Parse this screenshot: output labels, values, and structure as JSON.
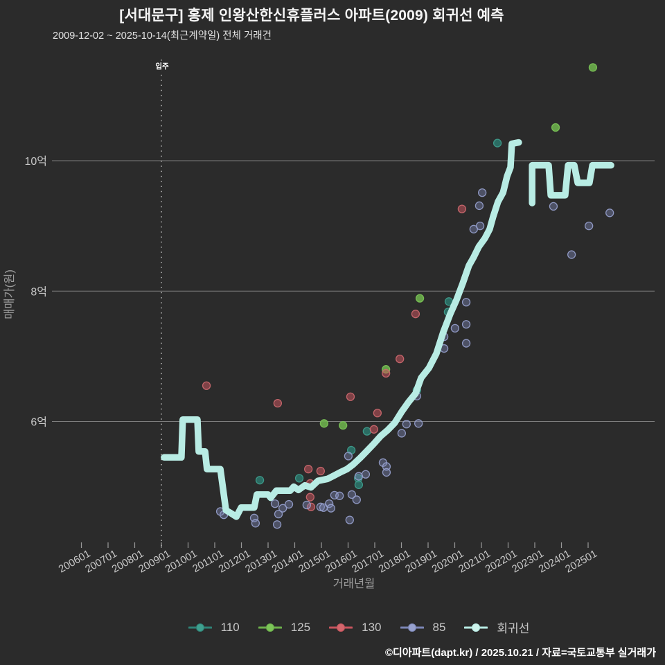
{
  "header": {
    "title": "[서대문구] 홍제 인왕산한신휴플러스 아파트(2009) 회귀선 예측",
    "subtitle": "2009-12-02 ~ 2025-10-14(최근계약일) 전체 거래건"
  },
  "annotation": {
    "move_in_label": "입주",
    "move_in_x_label": "200901"
  },
  "axes": {
    "y_title": "매매가(원)",
    "x_title": "거래년월",
    "y_ticks": [
      {
        "label": "10억",
        "value": 10
      },
      {
        "label": "8억",
        "value": 8
      },
      {
        "label": "6억",
        "value": 6
      }
    ],
    "x_tick_labels": [
      "200601",
      "200701",
      "200801",
      "200901",
      "201001",
      "201101",
      "201201",
      "201301",
      "201401",
      "201501",
      "201601",
      "201701",
      "201801",
      "201901",
      "202001",
      "202101",
      "202201",
      "202301",
      "202401",
      "202501"
    ]
  },
  "legend": {
    "items": [
      {
        "label": "110",
        "color": "#2f8276",
        "dot": "#3fa08f"
      },
      {
        "label": "125",
        "color": "#6cae4b",
        "dot": "#7cc558"
      },
      {
        "label": "130",
        "color": "#c5545d",
        "dot": "#d4666c"
      },
      {
        "label": "85",
        "color": "#7b86b5",
        "dot": "#98a2cf"
      },
      {
        "label": "회귀선",
        "color": "#b8ece4",
        "dot": "#cdf3ec"
      }
    ]
  },
  "footer": {
    "credit": "©디아파트(dapt.kr) / 2025.10.21 / 자료=국토교통부 실거래가"
  },
  "colors": {
    "background": "#2b2b2b",
    "gridline": "#8d8d8d",
    "tick_text": "#c8c8c8",
    "axis_title_text": "#9c9c9c",
    "dotted_vline": "#b4b4b4",
    "regression_line": "#b8ece4"
  },
  "chart_data": {
    "type": "scatter",
    "title": "[서대문구] 홍제 인왕산한신휴플러스 아파트(2009) 회귀선 예측",
    "subtitle": "2009-12-02 ~ 2025-10-14(최근계약일) 전체 거래건",
    "xlabel": "거래년월",
    "ylabel": "매매가(원)",
    "y_unit": "억",
    "xlim": [
      2004.9,
      2027.5
    ],
    "ylim": [
      4.0,
      11.6
    ],
    "grid": "horizontal-only",
    "legend_position": "bottom-center",
    "vline": {
      "x": 2009.0,
      "label": "입주",
      "style": "dotted"
    },
    "series": [
      {
        "name": "110",
        "kind": "scatter",
        "fill": "#2c7d72",
        "stroke": "#3fa08f",
        "fill_opacity": 0.8,
        "points": [
          [
            2012.69,
            5.1
          ],
          [
            2014.17,
            5.13
          ],
          [
            2016.12,
            5.56
          ],
          [
            2016.38,
            5.13
          ],
          [
            2016.4,
            5.03
          ],
          [
            2016.71,
            5.85
          ],
          [
            2018.58,
            6.48
          ],
          [
            2019.75,
            7.68
          ],
          [
            2019.78,
            7.84
          ],
          [
            2021.6,
            10.27
          ]
        ]
      },
      {
        "name": "125",
        "kind": "scatter",
        "fill": "#6cae4b",
        "stroke": "#7cc558",
        "fill_opacity": 0.9,
        "points": [
          [
            2015.1,
            5.97
          ],
          [
            2015.81,
            5.94
          ],
          [
            2017.42,
            6.8
          ],
          [
            2018.69,
            7.89
          ],
          [
            2023.78,
            10.51
          ],
          [
            2025.18,
            11.43
          ]
        ]
      },
      {
        "name": "130",
        "kind": "scatter",
        "fill": "#c5545d",
        "stroke": "#cf6a70",
        "fill_opacity": 0.55,
        "points": [
          [
            2010.69,
            6.55
          ],
          [
            2013.36,
            6.28
          ],
          [
            2014.51,
            5.27
          ],
          [
            2014.58,
            5.05
          ],
          [
            2014.58,
            4.84
          ],
          [
            2014.61,
            4.69
          ],
          [
            2014.97,
            5.24
          ],
          [
            2016.09,
            6.38
          ],
          [
            2016.97,
            5.88
          ],
          [
            2017.1,
            6.13
          ],
          [
            2017.42,
            6.74
          ],
          [
            2017.94,
            6.96
          ],
          [
            2018.53,
            7.65
          ],
          [
            2020.27,
            9.26
          ]
        ]
      },
      {
        "name": "85",
        "kind": "scatter",
        "fill": "#7b86b5",
        "stroke": "#98a2cf",
        "fill_opacity": 0.42,
        "points": [
          [
            2011.21,
            4.62
          ],
          [
            2011.34,
            4.57
          ],
          [
            2012.48,
            4.52
          ],
          [
            2012.53,
            4.44
          ],
          [
            2013.26,
            4.74
          ],
          [
            2013.34,
            4.42
          ],
          [
            2013.39,
            4.58
          ],
          [
            2013.55,
            4.67
          ],
          [
            2013.78,
            4.73
          ],
          [
            2014.45,
            4.72
          ],
          [
            2014.97,
            4.69
          ],
          [
            2015.08,
            4.68
          ],
          [
            2015.29,
            4.74
          ],
          [
            2015.36,
            4.67
          ],
          [
            2015.49,
            4.87
          ],
          [
            2015.68,
            4.86
          ],
          [
            2016.01,
            5.47
          ],
          [
            2016.06,
            4.49
          ],
          [
            2016.14,
            4.88
          ],
          [
            2016.32,
            4.8
          ],
          [
            2016.4,
            5.16
          ],
          [
            2016.66,
            5.19
          ],
          [
            2017.31,
            5.37
          ],
          [
            2017.44,
            5.31
          ],
          [
            2017.44,
            5.22
          ],
          [
            2018.01,
            5.82
          ],
          [
            2018.19,
            5.96
          ],
          [
            2018.58,
            6.39
          ],
          [
            2018.64,
            5.97
          ],
          [
            2019.6,
            7.3
          ],
          [
            2019.6,
            7.12
          ],
          [
            2020.01,
            7.43
          ],
          [
            2020.43,
            7.49
          ],
          [
            2020.43,
            7.2
          ],
          [
            2020.43,
            7.83
          ],
          [
            2020.71,
            8.95
          ],
          [
            2020.92,
            9.31
          ],
          [
            2020.95,
            9.0
          ],
          [
            2021.03,
            9.51
          ],
          [
            2023.7,
            9.3
          ],
          [
            2024.38,
            8.56
          ],
          [
            2025.03,
            9.0
          ],
          [
            2025.81,
            9.2
          ]
        ]
      },
      {
        "name": "회귀선",
        "kind": "line",
        "stroke": "#b8ece4",
        "width": 9.5,
        "segments": [
          [
            [
              2009.1,
              5.45
            ],
            [
              2009.75,
              5.45
            ],
            [
              2009.8,
              6.03
            ],
            [
              2010.35,
              6.03
            ],
            [
              2010.4,
              5.54
            ],
            [
              2010.64,
              5.54
            ],
            [
              2010.71,
              5.27
            ],
            [
              2011.21,
              5.27
            ],
            [
              2011.42,
              4.64
            ],
            [
              2011.62,
              4.59
            ],
            [
              2011.81,
              4.54
            ],
            [
              2011.99,
              4.68
            ],
            [
              2012.48,
              4.68
            ],
            [
              2012.58,
              4.88
            ],
            [
              2013.0,
              4.88
            ],
            [
              2013.1,
              4.83
            ],
            [
              2013.31,
              4.94
            ],
            [
              2013.83,
              4.94
            ],
            [
              2013.96,
              5.0
            ],
            [
              2014.14,
              4.95
            ],
            [
              2014.38,
              5.02
            ],
            [
              2014.61,
              4.99
            ],
            [
              2014.87,
              5.09
            ],
            [
              2015.23,
              5.12
            ],
            [
              2015.47,
              5.17
            ],
            [
              2015.7,
              5.22
            ],
            [
              2015.96,
              5.27
            ],
            [
              2016.19,
              5.34
            ],
            [
              2016.45,
              5.44
            ],
            [
              2016.71,
              5.55
            ],
            [
              2016.97,
              5.66
            ],
            [
              2017.23,
              5.78
            ],
            [
              2017.49,
              5.87
            ],
            [
              2017.75,
              5.98
            ],
            [
              2018.01,
              6.15
            ],
            [
              2018.27,
              6.3
            ],
            [
              2018.53,
              6.43
            ],
            [
              2018.74,
              6.67
            ],
            [
              2019.03,
              6.82
            ],
            [
              2019.31,
              7.04
            ],
            [
              2019.57,
              7.37
            ],
            [
              2019.83,
              7.65
            ],
            [
              2020.06,
              7.86
            ],
            [
              2020.3,
              8.12
            ],
            [
              2020.53,
              8.39
            ],
            [
              2020.71,
              8.52
            ],
            [
              2020.9,
              8.68
            ],
            [
              2021.13,
              8.81
            ],
            [
              2021.31,
              8.95
            ],
            [
              2021.44,
              9.14
            ],
            [
              2021.62,
              9.37
            ],
            [
              2021.81,
              9.51
            ],
            [
              2021.96,
              9.76
            ],
            [
              2022.09,
              9.9
            ],
            [
              2022.14,
              10.26
            ],
            [
              2022.4,
              10.28
            ]
          ],
          [
            [
              2022.9,
              9.35
            ],
            [
              2022.9,
              9.93
            ],
            [
              2023.52,
              9.93
            ],
            [
              2023.6,
              9.47
            ],
            [
              2024.14,
              9.47
            ],
            [
              2024.25,
              9.93
            ],
            [
              2024.48,
              9.93
            ],
            [
              2024.61,
              9.66
            ],
            [
              2025.05,
              9.66
            ],
            [
              2025.16,
              9.93
            ],
            [
              2025.86,
              9.93
            ]
          ]
        ]
      }
    ]
  }
}
